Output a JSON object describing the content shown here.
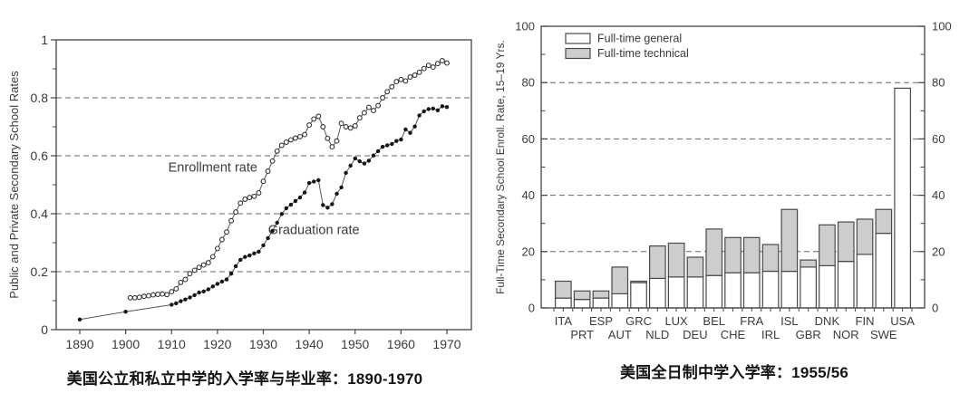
{
  "colors": {
    "frame": "#444444",
    "grid": "#666666",
    "text": "#3a3a40",
    "line": "#555555",
    "marker_fill": "#151515",
    "bar_general_fill": "#ffffff",
    "bar_technical_fill": "#cdcdcd",
    "bar_stroke": "#4a4a4a"
  },
  "left_figure": {
    "caption": "美国公立和私立中学的入学率与毕业率：1890-1970"
  },
  "right_figure": {
    "caption": "美国全日制中学入学率：1955/56"
  },
  "chart_data": [
    {
      "type": "line",
      "caption": "美国公立和私立中学的入学率与毕业率：1890-1970",
      "ylabel": "Public and Private Secondary School Rates",
      "xlabel": "",
      "xlim": [
        1885,
        1975
      ],
      "ylim": [
        0,
        1
      ],
      "x_ticks": [
        1890,
        1900,
        1910,
        1920,
        1930,
        1940,
        1950,
        1960,
        1970
      ],
      "y_ticks": [
        0,
        0.2,
        0.4,
        0.6,
        0.8,
        1
      ],
      "y_tick_labels": [
        "0",
        "0.2",
        "0.4",
        "0.6",
        "0.8",
        "1"
      ],
      "y_minor_ticks": [
        0.1,
        0.3,
        0.5,
        0.7,
        0.9
      ],
      "grid_lines": [
        0.2,
        0.4,
        0.6,
        0.8
      ],
      "grid_style": "dashed",
      "legend_position": "inline-labels",
      "series": [
        {
          "name": "Enrollment rate",
          "marker": "open-circle",
          "label_at": [
            1919,
            0.545
          ],
          "points": [
            [
              1901,
              0.11
            ],
            [
              1902,
              0.11
            ],
            [
              1903,
              0.112
            ],
            [
              1904,
              0.115
            ],
            [
              1905,
              0.117
            ],
            [
              1906,
              0.12
            ],
            [
              1907,
              0.122
            ],
            [
              1908,
              0.123
            ],
            [
              1909,
              0.121
            ],
            [
              1910,
              0.131
            ],
            [
              1911,
              0.141
            ],
            [
              1912,
              0.163
            ],
            [
              1913,
              0.173
            ],
            [
              1914,
              0.193
            ],
            [
              1915,
              0.205
            ],
            [
              1916,
              0.215
            ],
            [
              1917,
              0.223
            ],
            [
              1918,
              0.231
            ],
            [
              1919,
              0.252
            ],
            [
              1920,
              0.28
            ],
            [
              1921,
              0.311
            ],
            [
              1922,
              0.337
            ],
            [
              1923,
              0.376
            ],
            [
              1924,
              0.406
            ],
            [
              1925,
              0.437
            ],
            [
              1926,
              0.45
            ],
            [
              1927,
              0.456
            ],
            [
              1928,
              0.46
            ],
            [
              1929,
              0.472
            ],
            [
              1930,
              0.512
            ],
            [
              1931,
              0.547
            ],
            [
              1932,
              0.582
            ],
            [
              1933,
              0.616
            ],
            [
              1934,
              0.636
            ],
            [
              1935,
              0.647
            ],
            [
              1936,
              0.655
            ],
            [
              1937,
              0.661
            ],
            [
              1938,
              0.666
            ],
            [
              1939,
              0.673
            ],
            [
              1940,
              0.706
            ],
            [
              1941,
              0.727
            ],
            [
              1942,
              0.736
            ],
            [
              1943,
              0.7
            ],
            [
              1944,
              0.66
            ],
            [
              1945,
              0.631
            ],
            [
              1946,
              0.651
            ],
            [
              1947,
              0.712
            ],
            [
              1948,
              0.7
            ],
            [
              1949,
              0.696
            ],
            [
              1950,
              0.703
            ],
            [
              1951,
              0.731
            ],
            [
              1952,
              0.748
            ],
            [
              1953,
              0.767
            ],
            [
              1954,
              0.756
            ],
            [
              1955,
              0.773
            ],
            [
              1956,
              0.8
            ],
            [
              1957,
              0.821
            ],
            [
              1958,
              0.838
            ],
            [
              1959,
              0.856
            ],
            [
              1960,
              0.863
            ],
            [
              1961,
              0.858
            ],
            [
              1962,
              0.872
            ],
            [
              1963,
              0.878
            ],
            [
              1964,
              0.888
            ],
            [
              1965,
              0.901
            ],
            [
              1966,
              0.912
            ],
            [
              1967,
              0.906
            ],
            [
              1968,
              0.918
            ],
            [
              1969,
              0.928
            ],
            [
              1970,
              0.92
            ]
          ]
        },
        {
          "name": "Graduation rate",
          "marker": "filled-circle",
          "label_at": [
            1941,
            0.33
          ],
          "points": [
            [
              1890,
              0.035
            ],
            [
              1900,
              0.062
            ],
            [
              1910,
              0.086
            ],
            [
              1911,
              0.091
            ],
            [
              1912,
              0.098
            ],
            [
              1913,
              0.104
            ],
            [
              1914,
              0.111
            ],
            [
              1915,
              0.119
            ],
            [
              1916,
              0.128
            ],
            [
              1917,
              0.132
            ],
            [
              1918,
              0.139
            ],
            [
              1919,
              0.149
            ],
            [
              1920,
              0.158
            ],
            [
              1921,
              0.166
            ],
            [
              1922,
              0.173
            ],
            [
              1923,
              0.193
            ],
            [
              1924,
              0.219
            ],
            [
              1925,
              0.241
            ],
            [
              1926,
              0.251
            ],
            [
              1927,
              0.256
            ],
            [
              1928,
              0.263
            ],
            [
              1929,
              0.269
            ],
            [
              1930,
              0.291
            ],
            [
              1931,
              0.316
            ],
            [
              1932,
              0.341
            ],
            [
              1933,
              0.369
            ],
            [
              1934,
              0.399
            ],
            [
              1935,
              0.419
            ],
            [
              1936,
              0.431
            ],
            [
              1937,
              0.444
            ],
            [
              1938,
              0.456
            ],
            [
              1939,
              0.473
            ],
            [
              1940,
              0.506
            ],
            [
              1941,
              0.511
            ],
            [
              1942,
              0.516
            ],
            [
              1943,
              0.43
            ],
            [
              1944,
              0.421
            ],
            [
              1945,
              0.433
            ],
            [
              1946,
              0.469
            ],
            [
              1947,
              0.491
            ],
            [
              1948,
              0.541
            ],
            [
              1949,
              0.566
            ],
            [
              1950,
              0.591
            ],
            [
              1951,
              0.581
            ],
            [
              1952,
              0.573
            ],
            [
              1953,
              0.583
            ],
            [
              1954,
              0.601
            ],
            [
              1955,
              0.616
            ],
            [
              1956,
              0.631
            ],
            [
              1957,
              0.636
            ],
            [
              1958,
              0.641
            ],
            [
              1959,
              0.651
            ],
            [
              1960,
              0.656
            ],
            [
              1961,
              0.691
            ],
            [
              1962,
              0.679
            ],
            [
              1963,
              0.701
            ],
            [
              1964,
              0.739
            ],
            [
              1965,
              0.753
            ],
            [
              1966,
              0.761
            ],
            [
              1967,
              0.763
            ],
            [
              1968,
              0.757
            ],
            [
              1969,
              0.771
            ],
            [
              1970,
              0.768
            ]
          ]
        }
      ]
    },
    {
      "type": "bar",
      "stacked": true,
      "caption": "美国全日制中学入学率：1955/56",
      "ylabel": "Full-Time Secondary School Enroll. Rate, 15–19 Yrs.",
      "xlabel": "",
      "ylim": [
        0,
        100
      ],
      "y_ticks": [
        0,
        20,
        40,
        60,
        80,
        100
      ],
      "y_minor_ticks": [
        10,
        30,
        50,
        70,
        90
      ],
      "grid_lines": [
        20,
        40,
        60,
        80
      ],
      "grid_style": "dashed",
      "dual_y_axis": true,
      "legend_position": "top-left-inside",
      "legend": [
        {
          "label": "Full-time general",
          "fill": "#ffffff"
        },
        {
          "label": "Full-time technical",
          "fill": "#cdcdcd"
        }
      ],
      "categories": [
        "ITA",
        "PRT",
        "ESP",
        "AUT",
        "GRC",
        "NLD",
        "LUX",
        "DEU",
        "BEL",
        "CHE",
        "FRA",
        "IRL",
        "ISL",
        "GBR",
        "DNK",
        "NOR",
        "FIN",
        "SWE",
        "USA"
      ],
      "series": [
        {
          "name": "Full-time general",
          "values": [
            3.5,
            3,
            3.5,
            5,
            9,
            10.5,
            11,
            11,
            11.5,
            12.5,
            12.5,
            13,
            13,
            14.5,
            15,
            16.5,
            19,
            26.5,
            78
          ]
        },
        {
          "name": "Full-time technical",
          "values": [
            6,
            3,
            2.5,
            9.5,
            0.5,
            11.5,
            12,
            7,
            16.5,
            12.5,
            12.5,
            9.5,
            22,
            2.5,
            14.5,
            14,
            12.5,
            8.5,
            0
          ]
        }
      ]
    }
  ]
}
